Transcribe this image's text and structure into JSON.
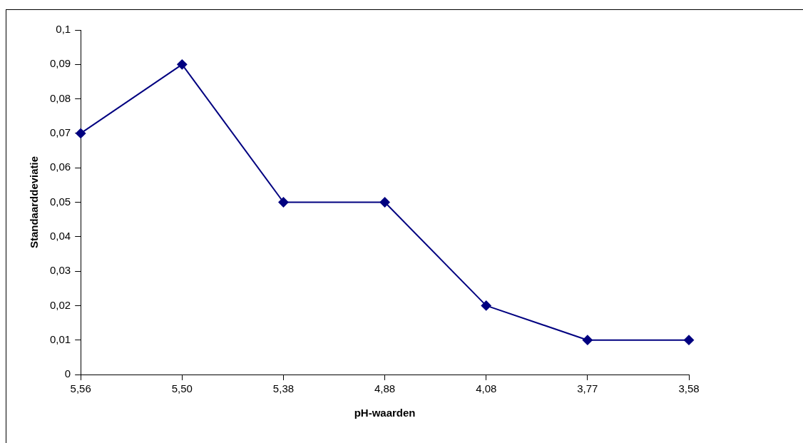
{
  "chart_data": {
    "type": "line",
    "xlabel": "pH-waarden",
    "ylabel": "Standaarddeviatie",
    "categories": [
      "5,56",
      "5,50",
      "5,38",
      "4,88",
      "4,08",
      "3,77",
      "3,58"
    ],
    "series": [
      {
        "color": "#000080",
        "values": [
          0.07,
          0.09,
          0.05,
          0.05,
          0.02,
          0.01,
          0.01
        ]
      }
    ],
    "ylim": [
      0,
      0.1
    ],
    "yticks": [
      {
        "value": 0,
        "label": "0"
      },
      {
        "value": 0.01,
        "label": "0,01"
      },
      {
        "value": 0.02,
        "label": "0,02"
      },
      {
        "value": 0.03,
        "label": "0,03"
      },
      {
        "value": 0.04,
        "label": "0,04"
      },
      {
        "value": 0.05,
        "label": "0,05"
      },
      {
        "value": 0.06,
        "label": "0,06"
      },
      {
        "value": 0.07,
        "label": "0,07"
      },
      {
        "value": 0.08,
        "label": "0,08"
      },
      {
        "value": 0.09,
        "label": "0,09"
      },
      {
        "value": 0.1,
        "label": "0,1"
      }
    ],
    "grid": false,
    "legend": false,
    "marker": "diamond",
    "line_style": "solid"
  }
}
